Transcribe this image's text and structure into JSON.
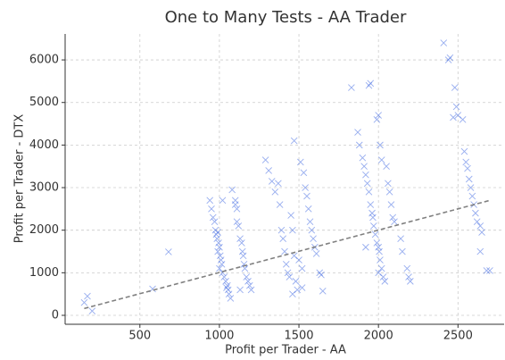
{
  "chart_data": {
    "type": "scatter",
    "title": "One to Many Tests - AA Trader",
    "xlabel": "Profit per Trader - AA",
    "ylabel": "Profit per Trader - DTX",
    "xlim": [
      30,
      2790
    ],
    "ylim": [
      -210,
      6610
    ],
    "xticks": [
      500,
      1000,
      1500,
      2000,
      2500
    ],
    "yticks": [
      0,
      1000,
      2000,
      3000,
      4000,
      5000,
      6000
    ],
    "grid": true,
    "color": "#4169e1",
    "trend": {
      "x": [
        150,
        2700
      ],
      "y": [
        160,
        2700
      ],
      "color": "#808080",
      "linestyle": "dashed"
    },
    "x": [
      150,
      170,
      200,
      580,
      680,
      940,
      950,
      960,
      970,
      975,
      980,
      985,
      990,
      995,
      1000,
      1005,
      1010,
      1015,
      1020,
      1030,
      1040,
      1050,
      1055,
      1060,
      1070,
      1080,
      1020,
      1000,
      990,
      1045,
      1100,
      1110,
      1110,
      1120,
      1130,
      1140,
      1145,
      1150,
      1155,
      1160,
      1170,
      1180,
      1190,
      1200,
      1130,
      1100,
      1290,
      1310,
      1330,
      1350,
      1370,
      1380,
      1390,
      1400,
      1410,
      1420,
      1430,
      1440,
      1450,
      1460,
      1470,
      1480,
      1490,
      1470,
      1460,
      1510,
      1530,
      1540,
      1550,
      1560,
      1570,
      1580,
      1590,
      1600,
      1610,
      1630,
      1640,
      1650,
      1520,
      1520,
      1500,
      1830,
      1940,
      1950,
      1870,
      1880,
      1900,
      1910,
      1920,
      1930,
      1940,
      1950,
      1960,
      1965,
      1970,
      1980,
      1990,
      2000,
      2005,
      2010,
      2020,
      2030,
      2040,
      2000,
      1990,
      2010,
      2020,
      2050,
      2060,
      2070,
      2080,
      2090,
      2100,
      2140,
      2150,
      2180,
      2190,
      2200,
      1920,
      2000,
      2410,
      2440,
      2450,
      2480,
      2490,
      2500,
      2470,
      2530,
      2540,
      2550,
      2560,
      2570,
      2580,
      2590,
      2600,
      2610,
      2620,
      2640,
      2650,
      2640,
      2680,
      2700
    ],
    "y": [
      300,
      450,
      100,
      620,
      1490,
      2700,
      2500,
      2300,
      2200,
      2000,
      1900,
      1800,
      1950,
      1700,
      1600,
      1400,
      1300,
      1200,
      1000,
      900,
      800,
      700,
      600,
      500,
      400,
      2950,
      2700,
      1100,
      1500,
      650,
      2600,
      2500,
      2200,
      2100,
      1800,
      1700,
      1500,
      1400,
      1200,
      1100,
      900,
      800,
      700,
      600,
      600,
      2700,
      3650,
      3400,
      3150,
      2900,
      3100,
      2600,
      2000,
      1800,
      1500,
      1200,
      1000,
      900,
      2350,
      2000,
      1400,
      800,
      600,
      4100,
      500,
      3600,
      3350,
      3000,
      2800,
      2500,
      2200,
      2000,
      1800,
      1600,
      1450,
      1000,
      950,
      570,
      650,
      1100,
      1300,
      5350,
      5400,
      5450,
      4300,
      4000,
      3700,
      3500,
      3300,
      3100,
      2900,
      2600,
      2400,
      2300,
      2100,
      1900,
      1700,
      1600,
      1500,
      1300,
      1100,
      900,
      800,
      4700,
      4600,
      4000,
      3650,
      3500,
      3100,
      2900,
      2600,
      2300,
      2200,
      1800,
      1500,
      1100,
      900,
      800,
      1600,
      1000,
      6400,
      6000,
      6050,
      5350,
      4900,
      4700,
      4650,
      4600,
      3850,
      3600,
      3450,
      3200,
      3000,
      2800,
      2600,
      2400,
      2200,
      2100,
      1950,
      1500,
      1050,
      1050
    ]
  }
}
